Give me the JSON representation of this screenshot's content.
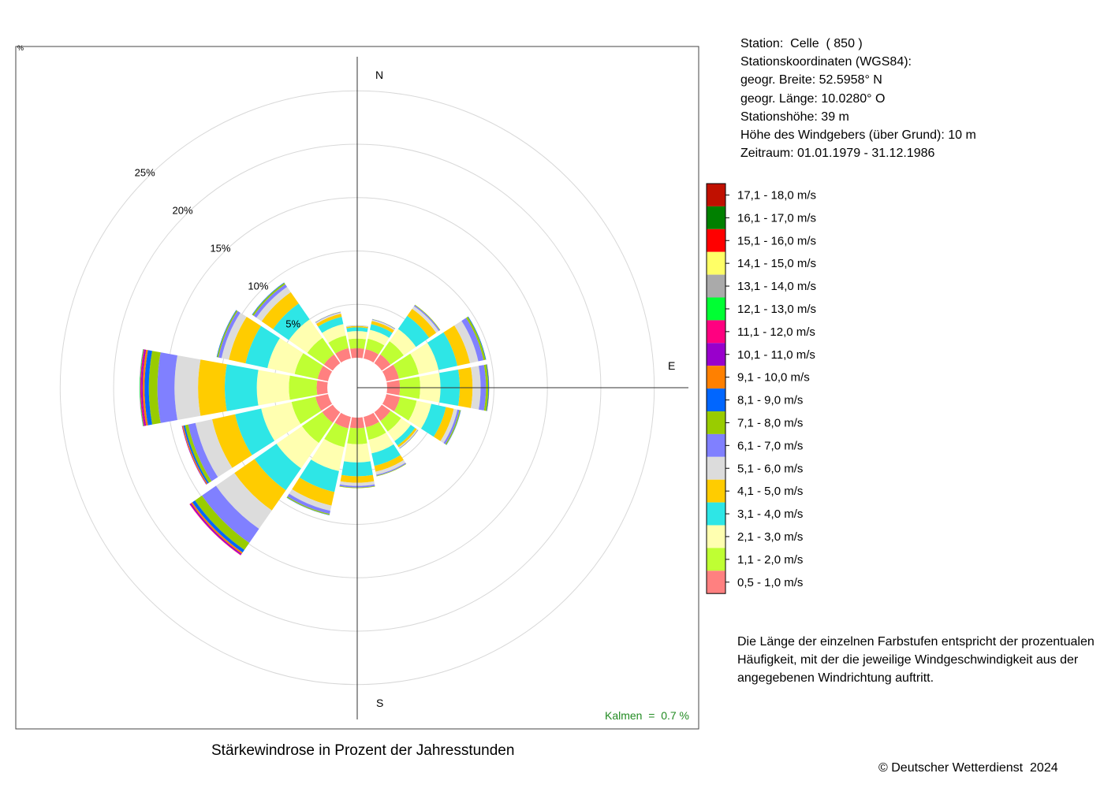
{
  "station_info": {
    "lines": [
      "Station:  Celle  ( 850 )",
      "Stationskoordinaten (WGS84):",
      "geogr. Breite: 52.5958° N",
      "geogr. Länge: 10.0280° O",
      "Stationshöhe: 39 m",
      "Höhe des Windgebers (über Grund): 10 m",
      "Zeitraum: 01.01.1979 - 31.12.1986"
    ]
  },
  "note": {
    "lines": [
      "Die Länge der einzelnen Farbstufen entspricht der prozentualen",
      "Häufigkeit, mit der die jeweilige Windgeschwindigkeit aus der",
      "angegebenen Windrichtung auftritt."
    ]
  },
  "footer": {
    "copyright": "© Deutscher Wetterdienst  2024"
  },
  "chart_data": {
    "type": "wind-rose",
    "title": "Stärkewindrose in Prozent der Jahresstunden",
    "directions": [
      "N",
      "NNO",
      "NO",
      "ONO",
      "O",
      "OSO",
      "SO",
      "SSO",
      "S",
      "SSW",
      "SW",
      "WSW",
      "W",
      "WNW",
      "NW",
      "NNW"
    ],
    "compass_labels": [
      "N",
      "E",
      "S"
    ],
    "radial_ticks": [
      5,
      10,
      15,
      20,
      25
    ],
    "radial_tick_labels": [
      "5%",
      "10%",
      "15%",
      "20%",
      "25%"
    ],
    "radial_unit_label": "%",
    "inner_offset_percent": 2.8,
    "calm_label": "Kalmen  =  0.7 %",
    "calm_color": "#228b22",
    "speed_classes": [
      {
        "label": "0,5 - 1,0 m/s",
        "color": "#ff8080"
      },
      {
        "label": "1,1 - 2,0 m/s",
        "color": "#bfff33"
      },
      {
        "label": "2,1 - 3,0 m/s",
        "color": "#ffffb0"
      },
      {
        "label": "3,1 - 4,0 m/s",
        "color": "#2ee6e6"
      },
      {
        "label": "4,1 - 5,0 m/s",
        "color": "#ffcc00"
      },
      {
        "label": "5,1 - 6,0 m/s",
        "color": "#dcdcdc"
      },
      {
        "label": "6,1 - 7,0 m/s",
        "color": "#8080ff"
      },
      {
        "label": "7,1 - 8,0 m/s",
        "color": "#99cc00"
      },
      {
        "label": "8,1 - 9,0 m/s",
        "color": "#0066ff"
      },
      {
        "label": "9,1 - 10,0 m/s",
        "color": "#ff8000"
      },
      {
        "label": "10,1 - 11,0 m/s",
        "color": "#9900cc"
      },
      {
        "label": "11,1 - 12,0 m/s",
        "color": "#ff0080"
      },
      {
        "label": "12,1 - 13,0 m/s",
        "color": "#00ff33"
      },
      {
        "label": "13,1 - 14,0 m/s",
        "color": "#aaaaaa"
      },
      {
        "label": "14,1 - 15,0 m/s",
        "color": "#ffff66"
      },
      {
        "label": "15,1 - 16,0 m/s",
        "color": "#ff0000"
      },
      {
        "label": "16,1 - 17,0 m/s",
        "color": "#008000"
      },
      {
        "label": "17,1 - 18,0 m/s",
        "color": "#c01000"
      }
    ],
    "series": [
      {
        "direction": "N",
        "values": [
          0.9,
          0.9,
          0.7,
          0.35,
          0.12,
          0.05,
          0.02,
          0.01
        ]
      },
      {
        "direction": "NNO",
        "values": [
          0.9,
          1.0,
          0.85,
          0.55,
          0.3,
          0.12,
          0.05,
          0.02
        ]
      },
      {
        "direction": "NO",
        "values": [
          1.0,
          1.5,
          1.4,
          1.5,
          0.8,
          0.3,
          0.12,
          0.05
        ]
      },
      {
        "direction": "ONO",
        "values": [
          1.2,
          1.9,
          1.9,
          1.8,
          1.2,
          0.8,
          0.5,
          0.2,
          0.05
        ]
      },
      {
        "direction": "O",
        "values": [
          1.2,
          1.9,
          1.9,
          1.8,
          1.2,
          0.75,
          0.5,
          0.22,
          0.06,
          0.02
        ]
      },
      {
        "direction": "OSO",
        "values": [
          1.3,
          1.6,
          1.4,
          1.4,
          0.75,
          0.35,
          0.2,
          0.1,
          0.03
        ]
      },
      {
        "direction": "SO",
        "values": [
          1.0,
          1.2,
          1.1,
          0.5,
          0.2,
          0.1,
          0.05,
          0.02
        ]
      },
      {
        "direction": "SSO",
        "values": [
          1.0,
          1.2,
          1.3,
          1.2,
          0.55,
          0.3,
          0.1,
          0.05
        ]
      },
      {
        "direction": "S",
        "values": [
          1.0,
          1.5,
          1.7,
          1.3,
          0.6,
          0.3,
          0.15,
          0.06
        ]
      },
      {
        "direction": "SSW",
        "values": [
          1.1,
          1.8,
          2.3,
          2.0,
          1.3,
          0.5,
          0.3,
          0.1,
          0.03
        ]
      },
      {
        "direction": "SW",
        "values": [
          1.2,
          2.3,
          2.9,
          2.5,
          2.3,
          2.1,
          1.6,
          0.8,
          0.3,
          0.15,
          0.12,
          0.05
        ]
      },
      {
        "direction": "WSW",
        "values": [
          1.2,
          2.3,
          2.9,
          2.5,
          2.2,
          1.6,
          0.7,
          0.3,
          0.15,
          0.1,
          0.05
        ]
      },
      {
        "direction": "W",
        "values": [
          1.0,
          2.6,
          3.0,
          3.0,
          2.5,
          2.2,
          1.6,
          0.8,
          0.4,
          0.18,
          0.12,
          0.1,
          0.05,
          0.04
        ]
      },
      {
        "direction": "WNW",
        "values": [
          1.0,
          2.2,
          2.6,
          2.1,
          1.6,
          0.7,
          0.3,
          0.12,
          0.05
        ]
      },
      {
        "direction": "NW",
        "values": [
          1.0,
          1.9,
          2.1,
          1.8,
          1.3,
          0.6,
          0.3,
          0.15,
          0.05
        ]
      },
      {
        "direction": "NNW",
        "values": [
          1.0,
          1.2,
          1.1,
          0.7,
          0.3,
          0.12,
          0.05,
          0.02
        ]
      }
    ]
  }
}
